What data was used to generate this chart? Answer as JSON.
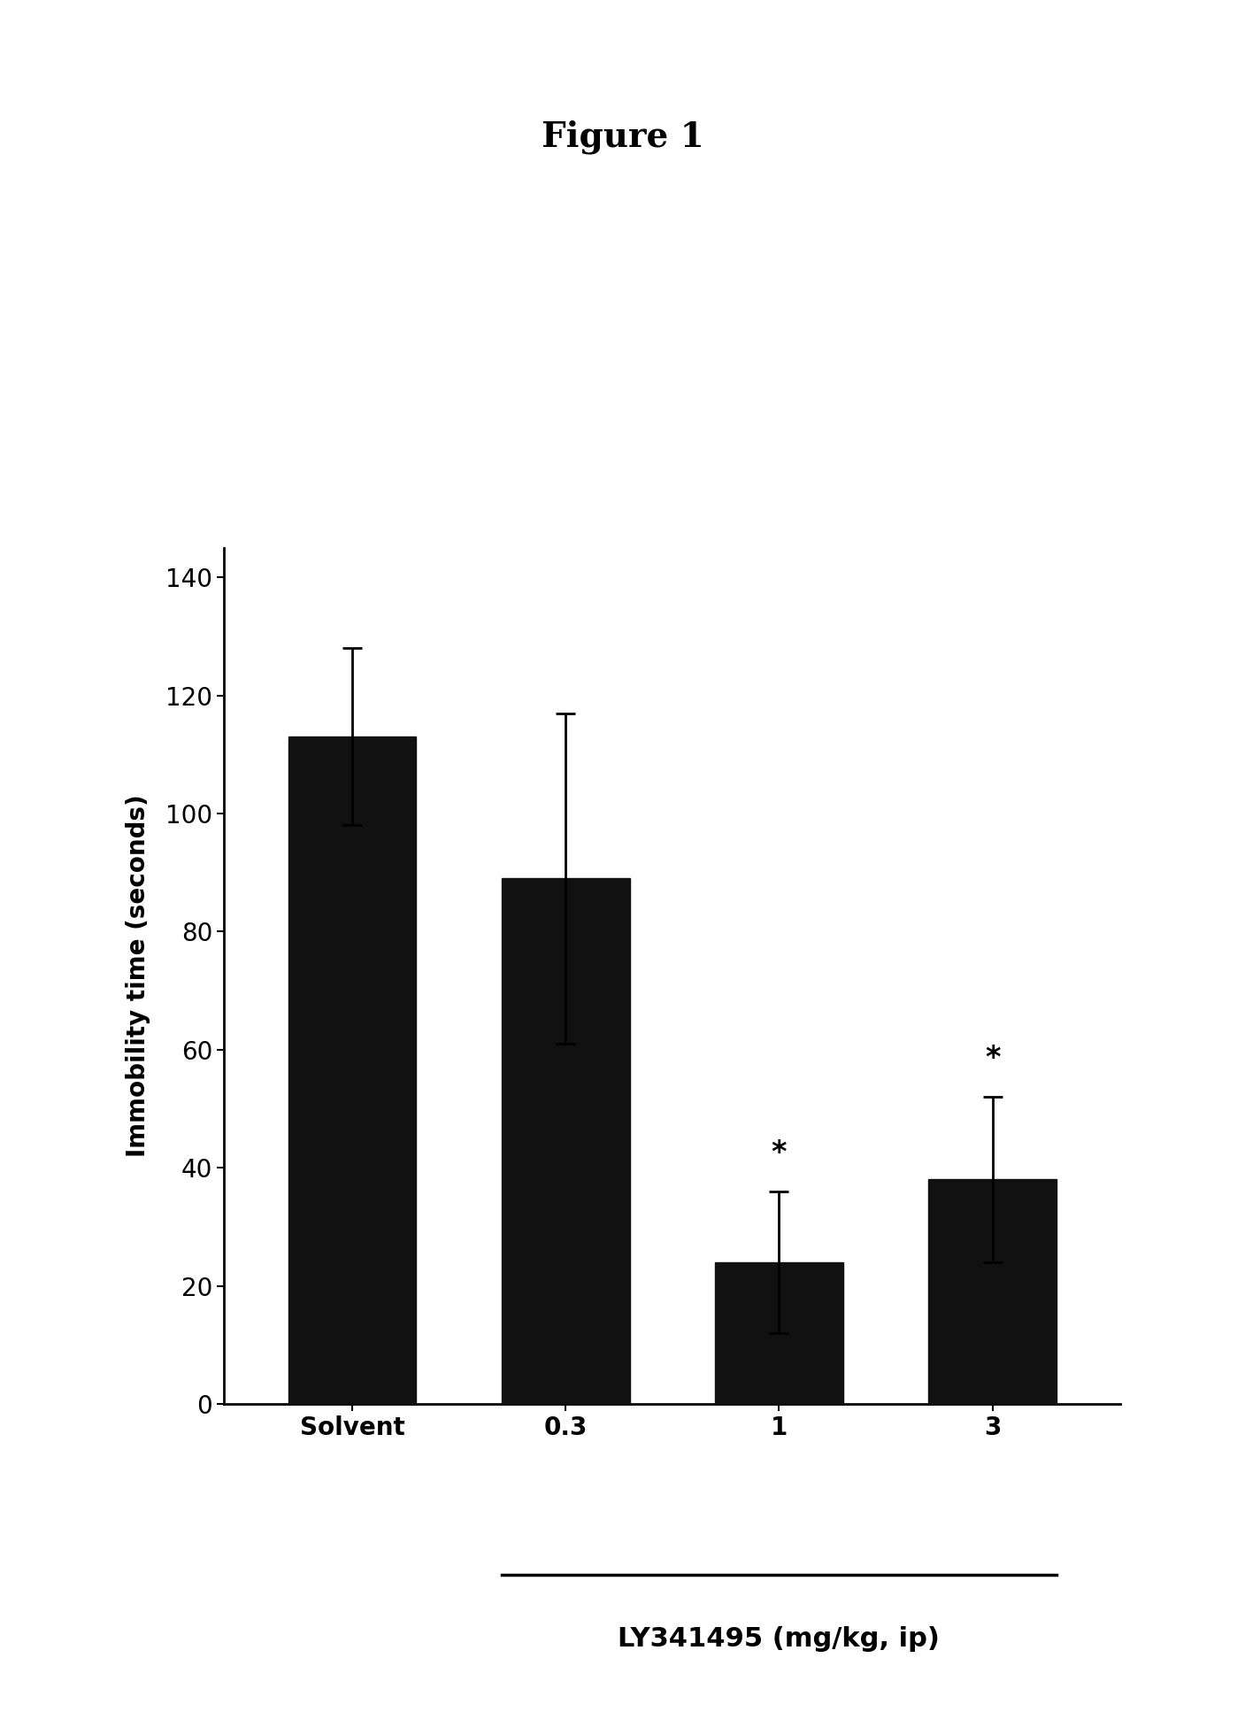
{
  "title": "Figure 1",
  "categories": [
    "Solvent",
    "0.3",
    "1",
    "3"
  ],
  "values": [
    113,
    89,
    24,
    38
  ],
  "errors": [
    15,
    28,
    12,
    14
  ],
  "bar_color": "#111111",
  "ylabel": "Immobility time (seconds)",
  "ylim": [
    0,
    145
  ],
  "yticks": [
    0,
    20,
    40,
    60,
    80,
    100,
    120,
    140
  ],
  "significance": [
    false,
    false,
    true,
    true
  ],
  "xlabel_group_label": "LY341495 (mg/kg, ip)",
  "background_color": "#ffffff",
  "title_fontsize": 28,
  "axis_label_fontsize": 20,
  "tick_fontsize": 20,
  "star_fontsize": 24,
  "bar_width": 0.6
}
